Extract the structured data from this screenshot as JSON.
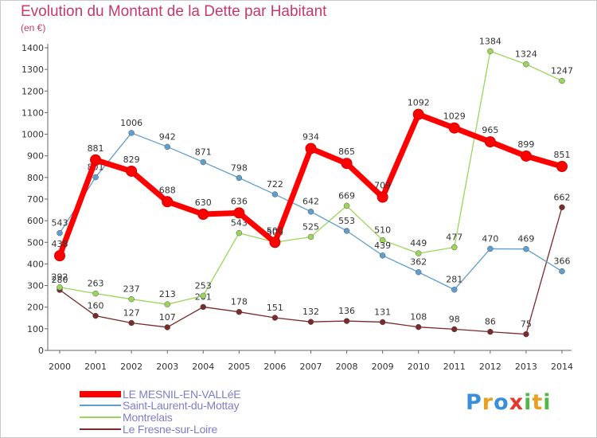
{
  "title": "Evolution du Montant de la Dette par Habitant",
  "subtitle": "(en €)",
  "logo": {
    "text": "Proxiti",
    "colors": [
      "#3a8fd8",
      "#e8a020",
      "#3a8fd8",
      "#e23a2e",
      "#4fb848",
      "#e8a020",
      "#4fb848"
    ]
  },
  "chart_data": {
    "type": "line",
    "x": [
      2000,
      2001,
      2002,
      2003,
      2004,
      2005,
      2006,
      2007,
      2008,
      2009,
      2010,
      2011,
      2012,
      2013,
      2014
    ],
    "ylim": [
      0,
      1400
    ],
    "yticks": [
      0,
      100,
      200,
      300,
      400,
      500,
      600,
      700,
      800,
      900,
      1000,
      1100,
      1200,
      1300,
      1400
    ],
    "grid": false,
    "legend_placement": "bottom-left",
    "series": [
      {
        "name": "LE MESNIL-EN-VALLéE",
        "color": "#ff0000",
        "values": [
          438,
          881,
          829,
          688,
          630,
          636,
          500,
          934,
          865,
          709,
          1092,
          1029,
          965,
          899,
          851
        ]
      },
      {
        "name": "Saint-Laurent-du-Mottay",
        "color": "#5f9fd0",
        "values": [
          543,
          801,
          1006,
          942,
          871,
          798,
          722,
          642,
          553,
          439,
          362,
          281,
          470,
          469,
          366
        ]
      },
      {
        "name": "Montrelais",
        "color": "#99d65a",
        "values": [
          292,
          263,
          237,
          213,
          253,
          543,
          500,
          525,
          669,
          510,
          449,
          477,
          1384,
          1324,
          1247
        ]
      },
      {
        "name": "Le Fresne-sur-Loire",
        "color": "#7a2a2a",
        "values": [
          280,
          160,
          127,
          107,
          201,
          178,
          151,
          132,
          136,
          131,
          108,
          98,
          86,
          75,
          662
        ]
      }
    ]
  }
}
